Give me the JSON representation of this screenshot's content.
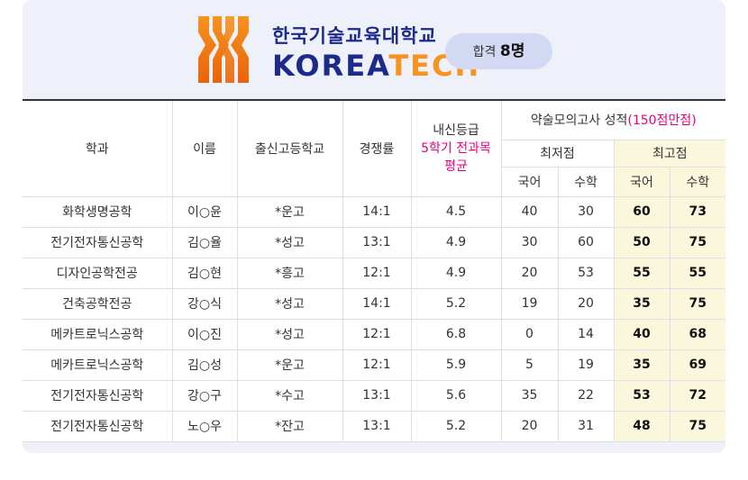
{
  "header": {
    "school_name_ko": "한국기술교육대학교",
    "brand_en_part1": "KOREA",
    "brand_en_part2": "TECH",
    "pass_label": "합격",
    "pass_count": "8명"
  },
  "colors": {
    "brand_navy": "#1c2a8a",
    "brand_orange": "#f7931e",
    "highlight": "#e4007f",
    "best_score_bg": "#fbf7dc"
  },
  "table": {
    "headers": {
      "dept": "학과",
      "name": "이름",
      "school": "출신고등학교",
      "ratio": "경쟁률",
      "grade_line1": "내신등급",
      "grade_line2": "5학기 전과목",
      "grade_line3": "평균",
      "mock_title": "약술모의고사 성적",
      "mock_note": "(150점만점)",
      "min_score": "최저점",
      "max_score": "최고점",
      "kor": "국어",
      "math": "수학"
    },
    "rows": [
      {
        "dept": "화학생명공학",
        "name": "이○윤",
        "school": "*운고",
        "ratio": "14:1",
        "grade": "4.5",
        "min_kor": "40",
        "min_math": "30",
        "max_kor": "60",
        "max_math": "73"
      },
      {
        "dept": "전기전자통신공학",
        "name": "김○율",
        "school": "*성고",
        "ratio": "13:1",
        "grade": "4.9",
        "min_kor": "30",
        "min_math": "60",
        "max_kor": "50",
        "max_math": "75"
      },
      {
        "dept": "디자인공학전공",
        "name": "김○현",
        "school": "*흥고",
        "ratio": "12:1",
        "grade": "4.9",
        "min_kor": "20",
        "min_math": "53",
        "max_kor": "55",
        "max_math": "55"
      },
      {
        "dept": "건축공학전공",
        "name": "강○식",
        "school": "*성고",
        "ratio": "14:1",
        "grade": "5.2",
        "min_kor": "19",
        "min_math": "20",
        "max_kor": "35",
        "max_math": "75"
      },
      {
        "dept": "메카트로닉스공학",
        "name": "이○진",
        "school": "*성고",
        "ratio": "12:1",
        "grade": "6.8",
        "min_kor": "0",
        "min_math": "14",
        "max_kor": "40",
        "max_math": "68"
      },
      {
        "dept": "메카트로닉스공학",
        "name": "김○성",
        "school": "*운고",
        "ratio": "12:1",
        "grade": "5.9",
        "min_kor": "5",
        "min_math": "19",
        "max_kor": "35",
        "max_math": "69"
      },
      {
        "dept": "전기전자통신공학",
        "name": "강○구",
        "school": "*수고",
        "ratio": "13:1",
        "grade": "5.6",
        "min_kor": "35",
        "min_math": "22",
        "max_kor": "53",
        "max_math": "72"
      },
      {
        "dept": "전기전자통신공학",
        "name": "노○우",
        "school": "*잔고",
        "ratio": "13:1",
        "grade": "5.2",
        "min_kor": "20",
        "min_math": "31",
        "max_kor": "48",
        "max_math": "75"
      }
    ]
  }
}
